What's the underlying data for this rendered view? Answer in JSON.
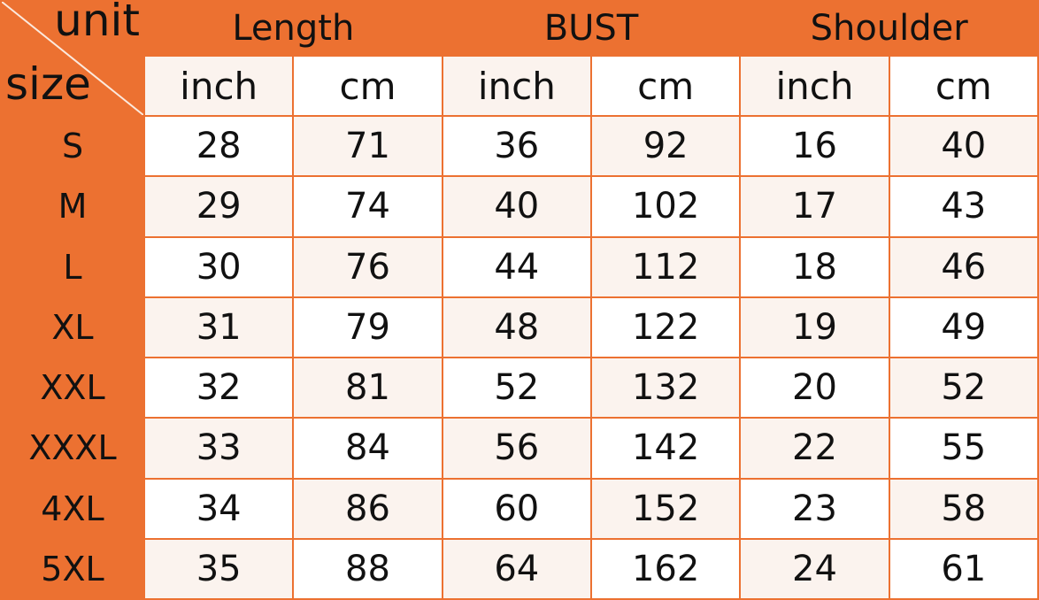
{
  "corner": {
    "unit_label": "unit",
    "size_label": "size"
  },
  "groups": [
    "Length",
    "BUST",
    "Shoulder"
  ],
  "units": [
    "inch",
    "cm",
    "inch",
    "cm",
    "inch",
    "cm"
  ],
  "rows": [
    {
      "size": "S",
      "values": [
        "28",
        "71",
        "36",
        "92",
        "16",
        "40"
      ]
    },
    {
      "size": "M",
      "values": [
        "29",
        "74",
        "40",
        "102",
        "17",
        "43"
      ]
    },
    {
      "size": "L",
      "values": [
        "30",
        "76",
        "44",
        "112",
        "18",
        "46"
      ]
    },
    {
      "size": "XL",
      "values": [
        "31",
        "79",
        "48",
        "122",
        "19",
        "49"
      ]
    },
    {
      "size": "XXL",
      "values": [
        "32",
        "81",
        "52",
        "132",
        "20",
        "52"
      ]
    },
    {
      "size": "XXXL",
      "values": [
        "33",
        "84",
        "56",
        "142",
        "22",
        "55"
      ]
    },
    {
      "size": "4XL",
      "values": [
        "34",
        "86",
        "60",
        "152",
        "23",
        "58"
      ]
    },
    {
      "size": "5XL",
      "values": [
        "35",
        "88",
        "64",
        "162",
        "24",
        "61"
      ]
    }
  ],
  "colors": {
    "header": "#ec7131",
    "cell": "#ffffff",
    "cell_alt": "#fbf3ee"
  }
}
